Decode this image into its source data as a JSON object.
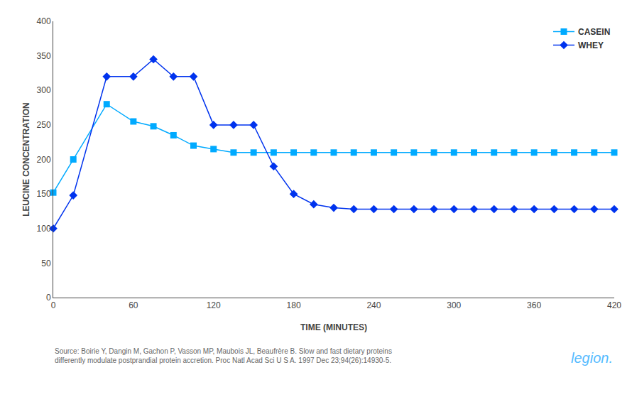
{
  "chart_data": {
    "type": "line",
    "x": [
      0,
      15,
      40,
      60,
      75,
      90,
      105,
      120,
      135,
      150,
      165,
      180,
      195,
      210,
      225,
      240,
      255,
      270,
      285,
      300,
      315,
      330,
      345,
      360,
      375,
      390,
      405,
      420
    ],
    "series": [
      {
        "name": "CASEIN",
        "color": "#00aaff",
        "marker": "square",
        "values": [
          152,
          200,
          280,
          255,
          248,
          235,
          220,
          215,
          210,
          210,
          210,
          210,
          210,
          210,
          210,
          210,
          210,
          210,
          210,
          210,
          210,
          210,
          210,
          210,
          210,
          210,
          210,
          210
        ]
      },
      {
        "name": "WHEY",
        "color": "#0033ee",
        "marker": "diamond",
        "values": [
          100,
          148,
          320,
          320,
          345,
          320,
          320,
          250,
          250,
          250,
          190,
          150,
          135,
          130,
          128,
          128,
          128,
          128,
          128,
          128,
          128,
          128,
          128,
          128,
          128,
          128,
          128,
          128
        ]
      }
    ],
    "x_label": "TIME (MINUTES)",
    "y_label": "LEUCINE CONCENTRATION",
    "xlim": [
      0,
      420
    ],
    "ylim": [
      0,
      400
    ],
    "xticks": [
      0,
      60,
      120,
      180,
      240,
      300,
      360,
      420
    ],
    "yticks": [
      0,
      50,
      100,
      150,
      200,
      250,
      300,
      350,
      400
    ],
    "grid": false,
    "legend": "upper right",
    "annotations": [
      "Source: Boirie Y, Dangin M, Gachon P, Vasson MP, Maubois JL, Beaufrère B. Slow and fast dietary proteins\ndifferently modulate postprandial protein accretion. Proc Natl Acad Sci U S A. 1997 Dec 23;94(26):14930-5.",
      "legion."
    ]
  }
}
